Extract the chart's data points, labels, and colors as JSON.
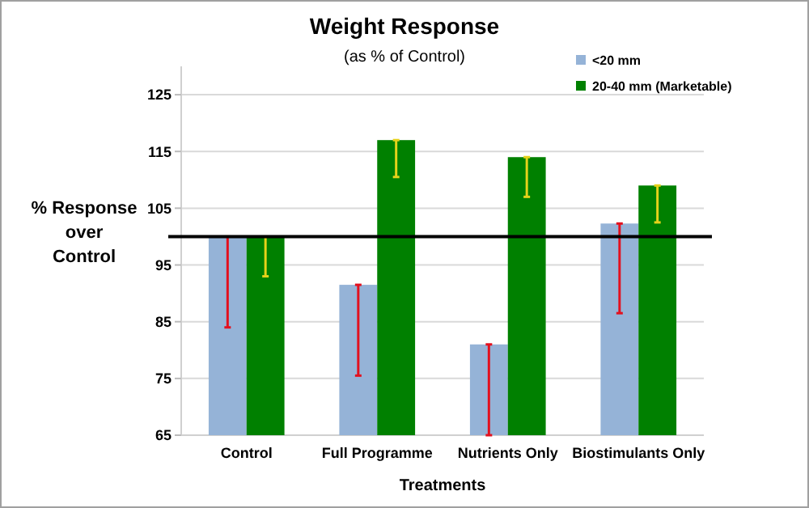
{
  "chart_data": {
    "type": "bar",
    "title": "Weight Response",
    "subtitle": "(as % of Control)",
    "xlabel": "Treatments",
    "ylabel": "% Response over Control",
    "categories": [
      "Control",
      "Full Programme",
      "Nutrients Only",
      "Biostimulants Only"
    ],
    "series": [
      {
        "name": "<20 mm",
        "color": "#95b3d7",
        "values": [
          100,
          91.5,
          81,
          102.3
        ],
        "errors": [
          [
            84,
            100
          ],
          [
            75.5,
            91.5
          ],
          [
            65,
            81
          ],
          [
            86.5,
            102.3
          ]
        ]
      },
      {
        "name": "20-40 mm (Marketable)",
        "color": "#008000",
        "values": [
          100,
          117,
          114,
          109
        ],
        "errors": [
          [
            93,
            100
          ],
          [
            110.5,
            117
          ],
          [
            107,
            114
          ],
          [
            102.5,
            109
          ]
        ]
      }
    ],
    "ylim": [
      65,
      130
    ],
    "yticks": [
      65,
      75,
      85,
      95,
      105,
      115,
      125
    ],
    "grid": "y",
    "legend": "top right",
    "ref_lines": [
      {
        "axis": "y",
        "value": 100,
        "color": "#000000"
      }
    ]
  }
}
